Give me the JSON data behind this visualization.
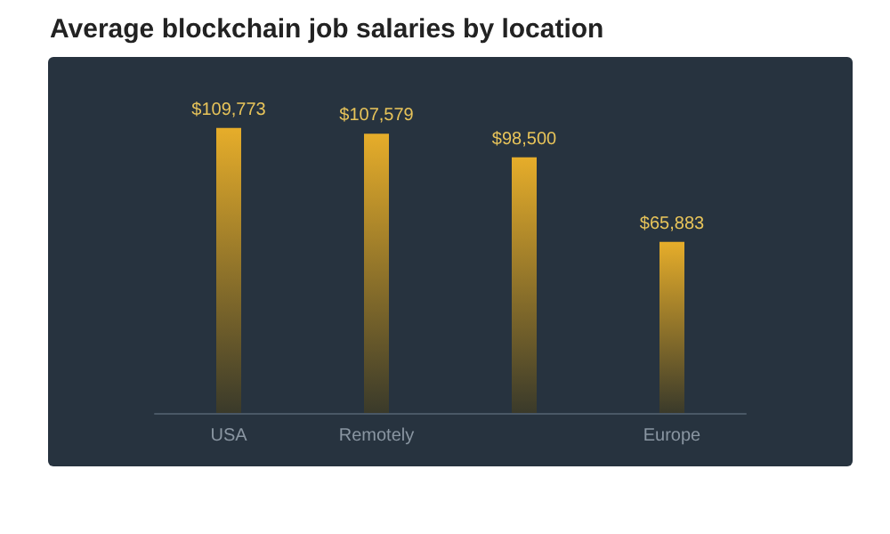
{
  "chart_data": {
    "type": "bar",
    "title": "Average blockchain job salaries by location",
    "categories": [
      "USA",
      "Remotely",
      null,
      "Europe"
    ],
    "values": [
      109773,
      107579,
      98500,
      65883
    ],
    "value_labels": [
      "$109,773",
      "$107,579",
      "$98,500",
      "$65,883"
    ],
    "color": "#e6ad2a"
  }
}
